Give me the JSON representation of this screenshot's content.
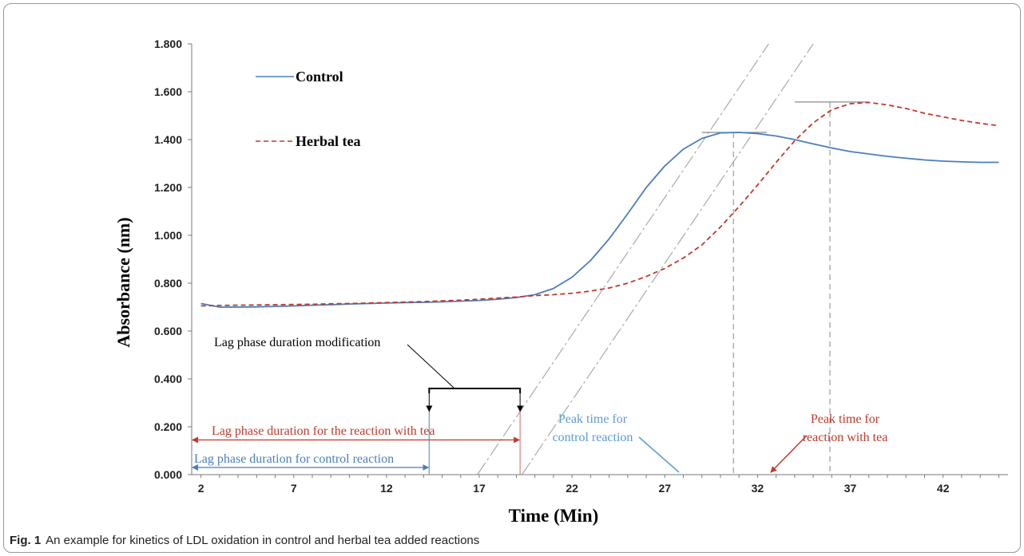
{
  "caption": {
    "figure_label": "Fig. 1",
    "text": "An example for kinetics of LDL oxidation in control and herbal tea added reactions"
  },
  "chart_data": {
    "type": "line",
    "title": "",
    "xlabel": "Time (Min)",
    "ylabel": "Absorbance (nm)",
    "xlim": [
      1.5,
      45.5
    ],
    "ylim": [
      0,
      1.8
    ],
    "x_ticks": [
      "2",
      "7",
      "12",
      "17",
      "22",
      "27",
      "32",
      "37",
      "42"
    ],
    "y_ticks": [
      "0.000",
      "0.200",
      "0.400",
      "0.600",
      "0.800",
      "1.000",
      "1.200",
      "1.400",
      "1.600",
      "1.800"
    ],
    "grid": false,
    "legend_position": "top-left",
    "colors": {
      "control": "#4a7ebb",
      "herbal": "#c0392b",
      "guide": "#aaaaaa",
      "annotation_black": "#000000"
    },
    "series": [
      {
        "name": "Control",
        "style": "solid",
        "x": [
          2,
          3,
          4,
          5,
          6,
          7,
          8,
          9,
          10,
          11,
          12,
          13,
          14,
          15,
          16,
          17,
          18,
          19,
          20,
          21,
          22,
          23,
          24,
          25,
          26,
          27,
          28,
          29,
          30,
          31,
          32,
          33,
          34,
          35,
          36,
          37,
          38,
          39,
          40,
          41,
          42,
          43,
          44,
          45
        ],
        "values": [
          0.715,
          0.7,
          0.7,
          0.701,
          0.703,
          0.705,
          0.708,
          0.71,
          0.713,
          0.715,
          0.717,
          0.719,
          0.72,
          0.722,
          0.725,
          0.728,
          0.733,
          0.74,
          0.752,
          0.778,
          0.825,
          0.895,
          0.985,
          1.09,
          1.2,
          1.29,
          1.36,
          1.405,
          1.428,
          1.43,
          1.425,
          1.415,
          1.4,
          1.382,
          1.365,
          1.35,
          1.34,
          1.33,
          1.322,
          1.315,
          1.31,
          1.307,
          1.305,
          1.305
        ]
      },
      {
        "name": "Herbal tea",
        "style": "dashed",
        "x": [
          2,
          3,
          4,
          5,
          6,
          7,
          8,
          9,
          10,
          11,
          12,
          13,
          14,
          15,
          16,
          17,
          18,
          19,
          20,
          21,
          22,
          23,
          24,
          25,
          26,
          27,
          28,
          29,
          30,
          31,
          32,
          33,
          34,
          35,
          36,
          37,
          38,
          39,
          40,
          41,
          42,
          43,
          44,
          45
        ],
        "values": [
          0.705,
          0.707,
          0.708,
          0.709,
          0.71,
          0.711,
          0.712,
          0.714,
          0.715,
          0.717,
          0.719,
          0.721,
          0.723,
          0.726,
          0.729,
          0.733,
          0.738,
          0.742,
          0.748,
          0.752,
          0.758,
          0.767,
          0.78,
          0.8,
          0.828,
          0.862,
          0.905,
          0.96,
          1.035,
          1.12,
          1.21,
          1.305,
          1.395,
          1.47,
          1.525,
          1.55,
          1.555,
          1.545,
          1.53,
          1.51,
          1.495,
          1.48,
          1.468,
          1.458
        ]
      }
    ],
    "guides": {
      "tangent_control": {
        "x": [
          16.9,
          32.6
        ],
        "y": [
          0,
          1.8
        ]
      },
      "tangent_herbal": {
        "x": [
          19.3,
          35.0
        ],
        "y": [
          0,
          1.8
        ]
      },
      "peak_control": {
        "x": 30.7,
        "y": 1.43,
        "hline_x": [
          29.0,
          32.5
        ]
      },
      "peak_herbal": {
        "x": 35.9,
        "y": 1.557,
        "hline_x": [
          34.0,
          38.0
        ]
      }
    },
    "annotations": {
      "lag_modification": {
        "text": "Lag phase duration modification",
        "bracket_x": [
          14.3,
          19.2
        ],
        "bracket_y": [
          0.36,
          0.265
        ]
      },
      "lag_tea": {
        "text": "Lag phase duration for the reaction with tea",
        "x_range": [
          1.5,
          19.2
        ],
        "y": 0.145
      },
      "lag_control": {
        "text": "Lag phase duration for control reaction",
        "x_range": [
          1.5,
          14.3
        ],
        "y": 0.03
      },
      "peak_control_label": {
        "line1": "Peak time for",
        "line2": "control reaction"
      },
      "peak_tea_label": {
        "line1": "Peak time for",
        "line2": "reaction with tea"
      }
    }
  }
}
